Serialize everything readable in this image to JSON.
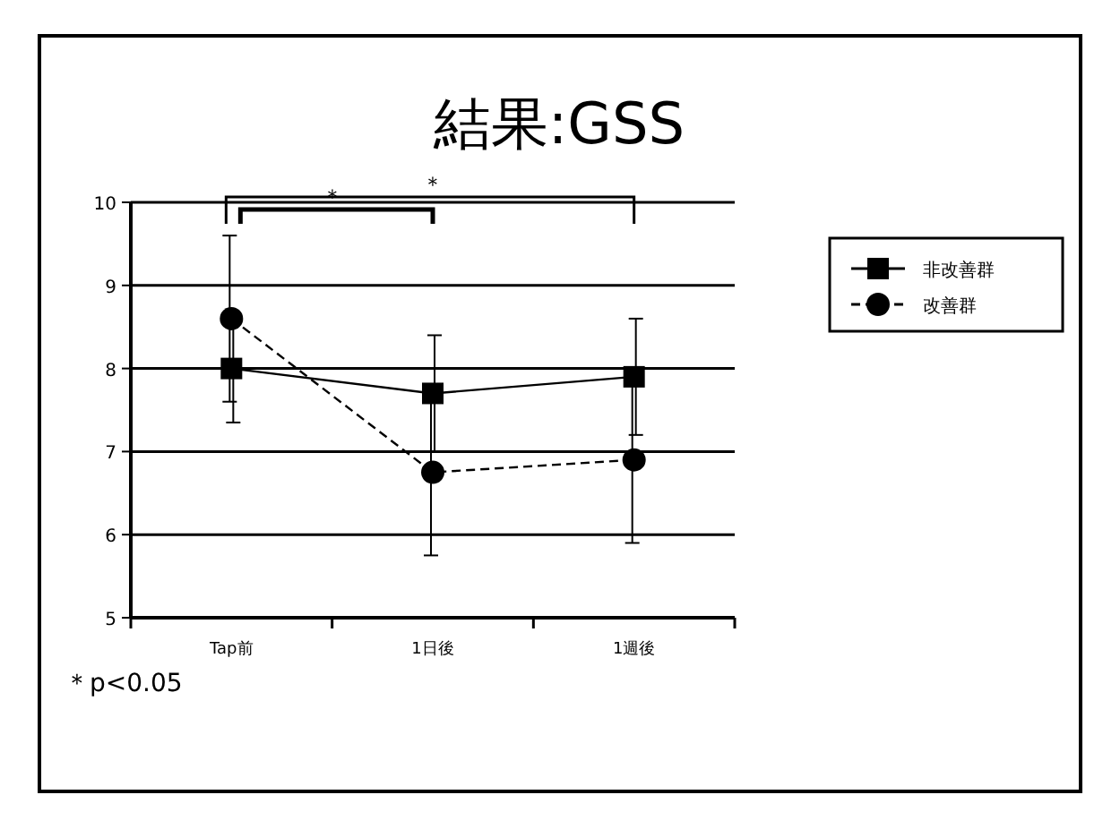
{
  "chart_data": {
    "type": "line",
    "title": "結果:GSS",
    "categories": [
      "Tap前",
      "1日後",
      "1週後"
    ],
    "series": [
      {
        "name": "非改善群",
        "color": "#000000",
        "values": [
          8.0,
          7.7,
          7.9
        ],
        "errors": [
          0.65,
          0.7,
          0.7
        ],
        "marker": "square",
        "line_style": "solid"
      },
      {
        "name": "改善群",
        "color": "#000000",
        "values": [
          8.6,
          6.75,
          6.9
        ],
        "errors": [
          1.0,
          1.0,
          1.0
        ],
        "marker": "circle",
        "line_style": "dashed"
      }
    ],
    "ylim": [
      5,
      10
    ],
    "yticks": [
      5,
      6,
      7,
      8,
      9,
      10
    ],
    "grid": "y",
    "legend": "top right",
    "annotations": [
      "＊",
      "＊",
      "＊p<0.05"
    ]
  }
}
